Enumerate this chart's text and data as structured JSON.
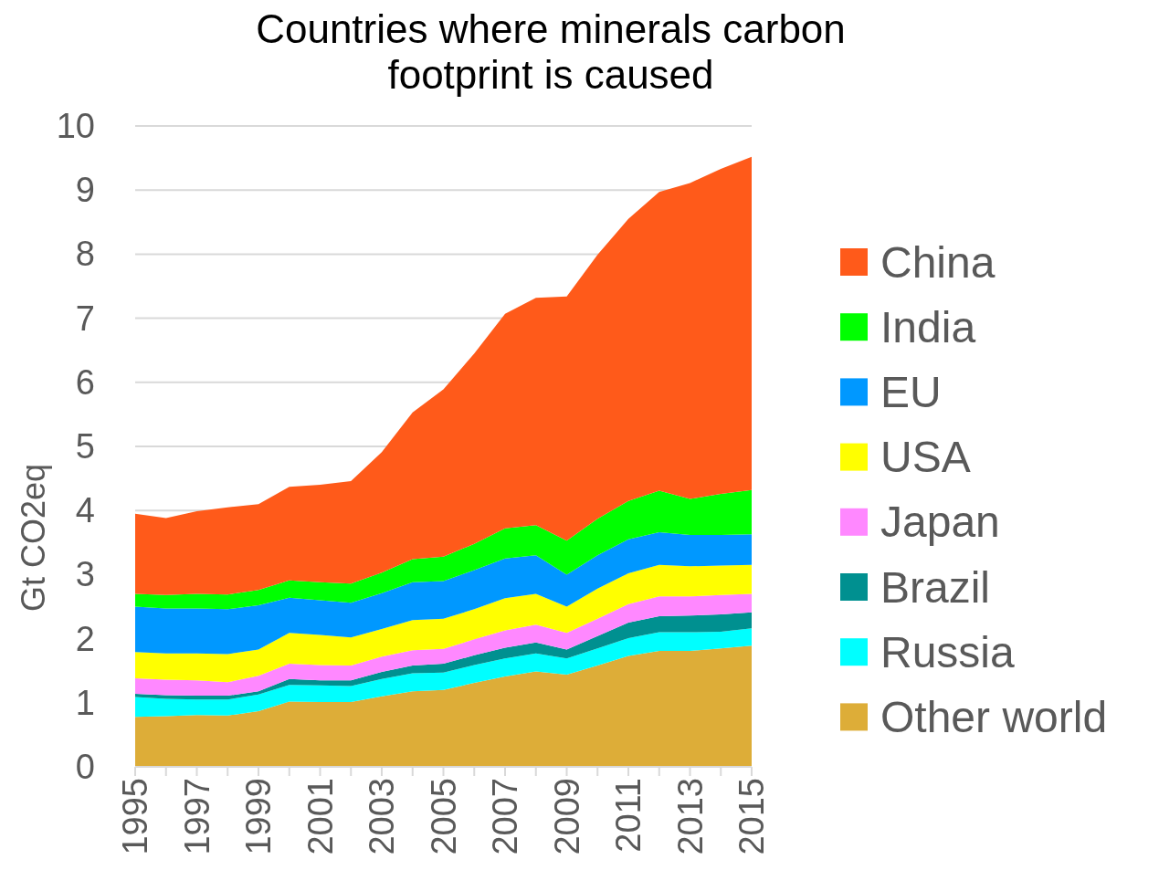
{
  "chart_data": {
    "type": "area",
    "stacked": true,
    "title": "Countries where minerals carbon\nfootprint is caused",
    "ylabel": "Gt CO2eq",
    "x": [
      1995,
      1996,
      1997,
      1998,
      1999,
      2000,
      2001,
      2002,
      2003,
      2004,
      2005,
      2006,
      2007,
      2008,
      2009,
      2010,
      2011,
      2012,
      2013,
      2014,
      2015
    ],
    "xlim": [
      1995,
      2015
    ],
    "xticks": [
      1995,
      {
        "value": 1996,
        "label": null
      },
      1997,
      {
        "value": 1998,
        "label": null
      },
      1999,
      {
        "value": 2000,
        "label": null
      },
      2001,
      {
        "value": 2002,
        "label": null
      },
      2003,
      {
        "value": 2004,
        "label": null
      },
      2005,
      {
        "value": 2006,
        "label": null
      },
      2007,
      {
        "value": 2008,
        "label": null
      },
      2009,
      {
        "value": 2010,
        "label": null
      },
      2011,
      {
        "value": 2012,
        "label": null
      },
      2013,
      {
        "value": 2014,
        "label": null
      },
      2015
    ],
    "ylim": [
      0,
      10
    ],
    "yticks": [
      0,
      1,
      2,
      3,
      4,
      5,
      6,
      7,
      8,
      9,
      10
    ],
    "grid": "y",
    "legend": "right",
    "series": [
      {
        "name": "Other world",
        "color": "#ddad38",
        "values": [
          0.78,
          0.79,
          0.81,
          0.8,
          0.87,
          1.02,
          1.01,
          1.01,
          1.1,
          1.18,
          1.2,
          1.31,
          1.41,
          1.49,
          1.44,
          1.58,
          1.73,
          1.81,
          1.81,
          1.85,
          1.89
        ]
      },
      {
        "name": "Russia",
        "color": "#00ffff",
        "values": [
          0.31,
          0.27,
          0.24,
          0.25,
          0.26,
          0.26,
          0.26,
          0.25,
          0.27,
          0.28,
          0.27,
          0.28,
          0.28,
          0.28,
          0.25,
          0.27,
          0.28,
          0.29,
          0.29,
          0.26,
          0.27
        ]
      },
      {
        "name": "Brazil",
        "color": "#009090",
        "values": [
          0.05,
          0.06,
          0.06,
          0.06,
          0.05,
          0.09,
          0.08,
          0.09,
          0.11,
          0.12,
          0.14,
          0.15,
          0.17,
          0.17,
          0.14,
          0.19,
          0.24,
          0.25,
          0.26,
          0.27,
          0.25
        ]
      },
      {
        "name": "Japan",
        "color": "#ff88ff",
        "values": [
          0.24,
          0.24,
          0.24,
          0.21,
          0.24,
          0.24,
          0.24,
          0.23,
          0.24,
          0.24,
          0.23,
          0.25,
          0.27,
          0.28,
          0.26,
          0.27,
          0.29,
          0.31,
          0.3,
          0.3,
          0.29
        ]
      },
      {
        "name": "USA",
        "color": "#ffff00",
        "values": [
          0.41,
          0.41,
          0.42,
          0.44,
          0.41,
          0.48,
          0.47,
          0.44,
          0.43,
          0.47,
          0.47,
          0.47,
          0.5,
          0.48,
          0.41,
          0.47,
          0.48,
          0.49,
          0.47,
          0.46,
          0.45
        ]
      },
      {
        "name": "EU",
        "color": "#0098ff",
        "values": [
          0.71,
          0.7,
          0.7,
          0.7,
          0.69,
          0.55,
          0.54,
          0.54,
          0.56,
          0.59,
          0.59,
          0.61,
          0.62,
          0.6,
          0.5,
          0.52,
          0.53,
          0.51,
          0.49,
          0.48,
          0.48
        ]
      },
      {
        "name": "India",
        "color": "#00ff00",
        "values": [
          0.2,
          0.21,
          0.23,
          0.23,
          0.24,
          0.27,
          0.28,
          0.3,
          0.32,
          0.36,
          0.38,
          0.41,
          0.47,
          0.47,
          0.53,
          0.57,
          0.6,
          0.65,
          0.56,
          0.64,
          0.69
        ]
      },
      {
        "name": "China",
        "color": "#ff5a1a",
        "values": [
          1.25,
          1.2,
          1.29,
          1.36,
          1.34,
          1.46,
          1.52,
          1.6,
          1.88,
          2.29,
          2.61,
          2.97,
          3.35,
          3.55,
          3.81,
          4.12,
          4.4,
          4.66,
          4.93,
          5.07,
          5.2
        ]
      }
    ]
  }
}
